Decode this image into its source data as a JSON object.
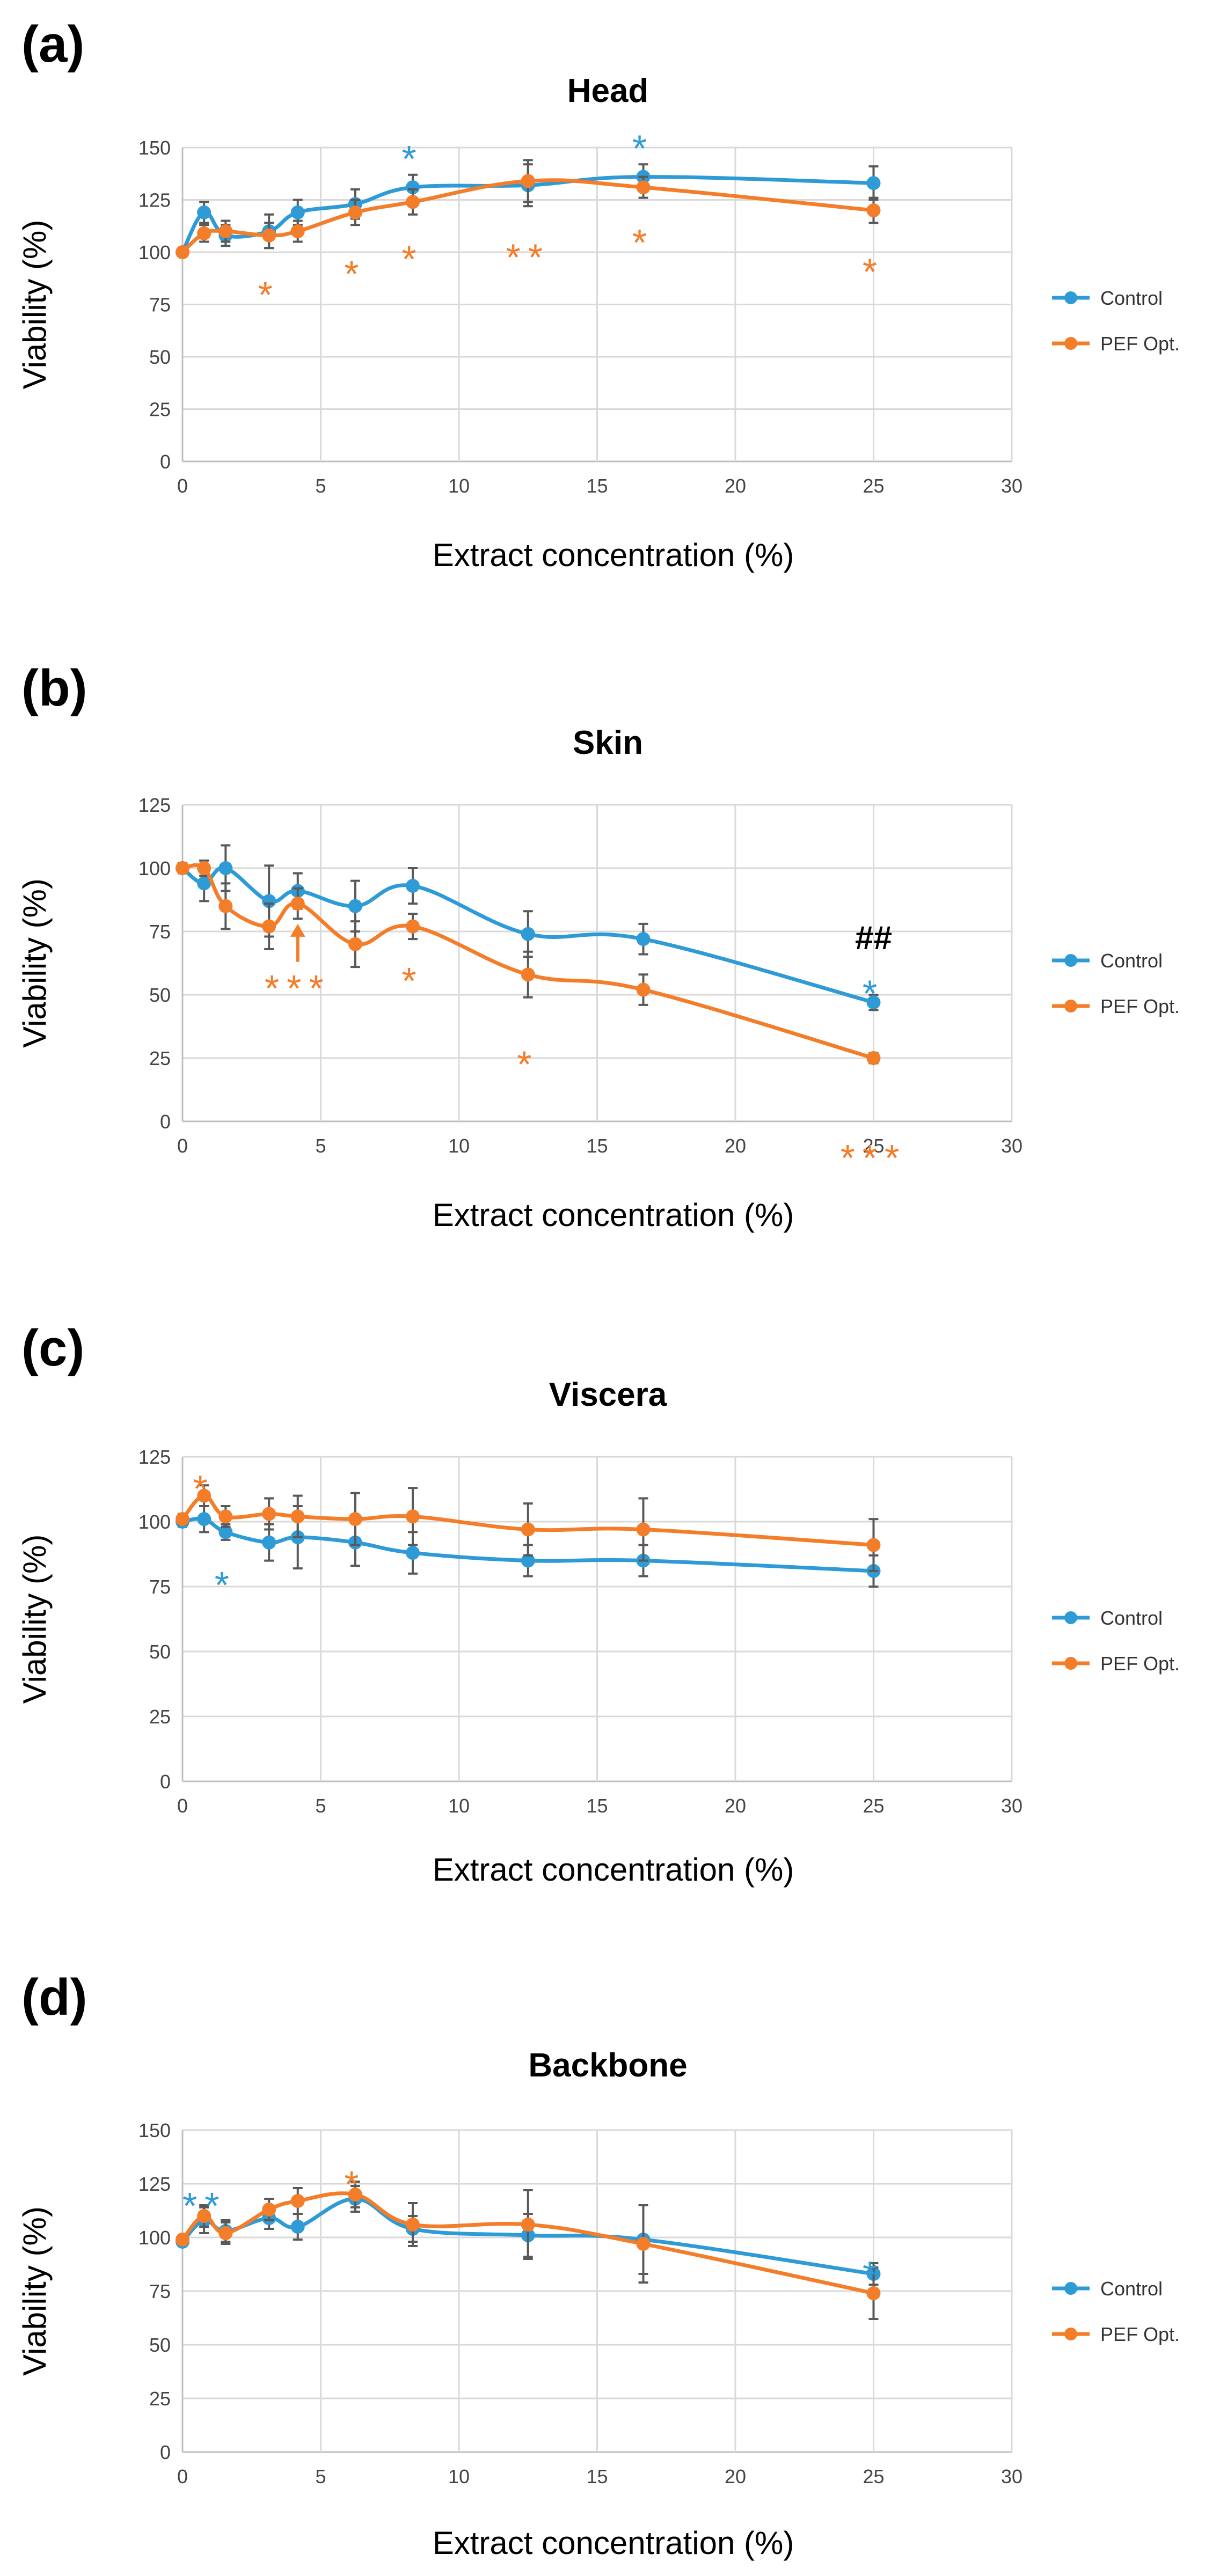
{
  "colors": {
    "control": "#2E9BD6",
    "pef": "#F47D2A",
    "hash": "#000000"
  },
  "chart_data": [
    {
      "panel": "(a)",
      "type": "line",
      "title": "Head",
      "xlabel": "Extract concentration (%)",
      "ylabel": "Viability (%)",
      "xlim": [
        0,
        30
      ],
      "ylim": [
        0,
        150
      ],
      "xticks": [
        0,
        5,
        10,
        15,
        20,
        25,
        30
      ],
      "yticks": [
        0,
        25,
        50,
        75,
        100,
        125,
        150
      ],
      "legend": "right",
      "series": [
        {
          "name": "Control",
          "color_key": "control",
          "x": [
            0,
            0.78,
            1.56,
            3.13,
            4.17,
            6.25,
            8.33,
            12.5,
            16.67,
            25
          ],
          "y": [
            100,
            119,
            108,
            110,
            119,
            123,
            131,
            132,
            136,
            133
          ],
          "err": [
            2,
            5,
            5,
            8,
            6,
            7,
            6,
            10,
            6,
            8
          ]
        },
        {
          "name": "PEF Opt.",
          "color_key": "pef",
          "x": [
            0,
            0.78,
            1.56,
            3.13,
            4.17,
            6.25,
            8.33,
            12.5,
            16.67,
            25
          ],
          "y": [
            100,
            109,
            110,
            108,
            110,
            119,
            124,
            134,
            131,
            120
          ],
          "err": [
            2,
            4,
            5,
            6,
            5,
            6,
            6,
            10,
            5,
            6
          ]
        }
      ],
      "annotations": [
        {
          "text": "*",
          "color_key": "pef",
          "x": 3.13,
          "y": 85
        },
        {
          "text": "*",
          "color_key": "pef",
          "x": 6.25,
          "y": 95
        },
        {
          "text": "*",
          "color_key": "pef",
          "x": 8.33,
          "y": 102
        },
        {
          "text": "*",
          "color_key": "control",
          "x": 8.33,
          "y": 150
        },
        {
          "text": "**",
          "color_key": "pef",
          "x": 12.5,
          "y": 103
        },
        {
          "text": "*",
          "color_key": "pef",
          "x": 16.67,
          "y": 110
        },
        {
          "text": "*",
          "color_key": "control",
          "x": 16.67,
          "y": 155
        },
        {
          "text": "*",
          "color_key": "pef",
          "x": 25,
          "y": 96
        }
      ]
    },
    {
      "panel": "(b)",
      "type": "line",
      "title": "Skin",
      "xlabel": "Extract concentration (%)",
      "ylabel": "Viability (%)",
      "xlim": [
        0,
        30
      ],
      "ylim": [
        0,
        125
      ],
      "xticks": [
        0,
        5,
        10,
        15,
        20,
        25,
        30
      ],
      "yticks": [
        0,
        25,
        50,
        75,
        100,
        125
      ],
      "legend": "right",
      "series": [
        {
          "name": "Control",
          "color_key": "control",
          "x": [
            0,
            0.78,
            1.56,
            3.13,
            4.17,
            6.25,
            8.33,
            12.5,
            16.67,
            25
          ],
          "y": [
            100,
            94,
            100,
            87,
            91,
            85,
            93,
            74,
            72,
            47
          ],
          "err": [
            2,
            7,
            9,
            14,
            7,
            10,
            7,
            9,
            6,
            3
          ]
        },
        {
          "name": "PEF Opt.",
          "color_key": "pef",
          "x": [
            0,
            0.78,
            1.56,
            3.13,
            4.17,
            6.25,
            8.33,
            12.5,
            16.67,
            25
          ],
          "y": [
            100,
            100,
            85,
            77,
            86,
            70,
            77,
            58,
            52,
            25
          ],
          "err": [
            2,
            3,
            9,
            9,
            6,
            9,
            5,
            9,
            6,
            2
          ]
        }
      ],
      "annotations": [
        {
          "text": "***",
          "color_key": "pef",
          "x": 4.17,
          "y": 57,
          "arrow": true
        },
        {
          "text": "*",
          "color_key": "pef",
          "x": 8.33,
          "y": 60
        },
        {
          "text": "*",
          "color_key": "pef",
          "x": 12.5,
          "y": 27
        },
        {
          "text": "*",
          "color_key": "control",
          "x": 25,
          "y": 55
        },
        {
          "text": "##",
          "color_key": "hash",
          "x": 25,
          "y": 68
        },
        {
          "text": "***",
          "color_key": "pef",
          "x": 25,
          "y": -10
        }
      ]
    },
    {
      "panel": "(c)",
      "type": "line",
      "title": "Viscera",
      "xlabel": "Extract concentration (%)",
      "ylabel": "Viability (%)",
      "xlim": [
        0,
        30
      ],
      "ylim": [
        0,
        125
      ],
      "xticks": [
        0,
        5,
        10,
        15,
        20,
        25,
        30
      ],
      "yticks": [
        0,
        25,
        50,
        75,
        100,
        125
      ],
      "legend": "right",
      "series": [
        {
          "name": "Control",
          "color_key": "control",
          "x": [
            0,
            0.78,
            1.56,
            3.13,
            4.17,
            6.25,
            8.33,
            12.5,
            16.67,
            25
          ],
          "y": [
            100,
            101,
            96,
            92,
            94,
            92,
            88,
            85,
            85,
            81
          ],
          "err": [
            2,
            5,
            3,
            7,
            12,
            9,
            8,
            6,
            6,
            6
          ]
        },
        {
          "name": "PEF Opt.",
          "color_key": "pef",
          "x": [
            0,
            0.78,
            1.56,
            3.13,
            4.17,
            6.25,
            8.33,
            12.5,
            16.67,
            25
          ],
          "y": [
            101,
            110,
            102,
            103,
            102,
            101,
            102,
            97,
            97,
            91
          ],
          "err": [
            2,
            4,
            4,
            6,
            8,
            10,
            11,
            10,
            12,
            10
          ]
        }
      ],
      "annotations": [
        {
          "text": "*",
          "color_key": "pef",
          "x": 0.78,
          "y": 117
        },
        {
          "text": "*",
          "color_key": "control",
          "x": 1.56,
          "y": 80
        }
      ]
    },
    {
      "panel": "(d)",
      "type": "line",
      "title": "Backbone",
      "xlabel": "Extract concentration (%)",
      "ylabel": "Viability (%)",
      "xlim": [
        0,
        30
      ],
      "ylim": [
        0,
        150
      ],
      "xticks": [
        0,
        5,
        10,
        15,
        20,
        25,
        30
      ],
      "yticks": [
        0,
        25,
        50,
        75,
        100,
        125,
        150
      ],
      "legend": "right",
      "series": [
        {
          "name": "Control",
          "color_key": "control",
          "x": [
            0,
            0.78,
            1.56,
            3.13,
            4.17,
            6.25,
            8.33,
            12.5,
            16.67,
            25
          ],
          "y": [
            98,
            108,
            103,
            109,
            105,
            118,
            104,
            101,
            99,
            83
          ],
          "err": [
            2,
            6,
            5,
            5,
            6,
            6,
            6,
            10,
            16,
            5
          ]
        },
        {
          "name": "PEF Opt.",
          "color_key": "pef",
          "x": [
            0,
            0.78,
            1.56,
            3.13,
            4.17,
            6.25,
            8.33,
            12.5,
            16.67,
            25
          ],
          "y": [
            99,
            110,
            102,
            113,
            117,
            120,
            106,
            106,
            97,
            74
          ],
          "err": [
            2,
            5,
            5,
            5,
            6,
            6,
            10,
            16,
            18,
            12
          ]
        }
      ],
      "annotations": [
        {
          "text": "**",
          "color_key": "control",
          "x": 0.8,
          "y": 120
        },
        {
          "text": "*",
          "color_key": "pef",
          "x": 6.25,
          "y": 130
        },
        {
          "text": "*",
          "color_key": "control",
          "x": 25,
          "y": 88
        }
      ]
    }
  ]
}
